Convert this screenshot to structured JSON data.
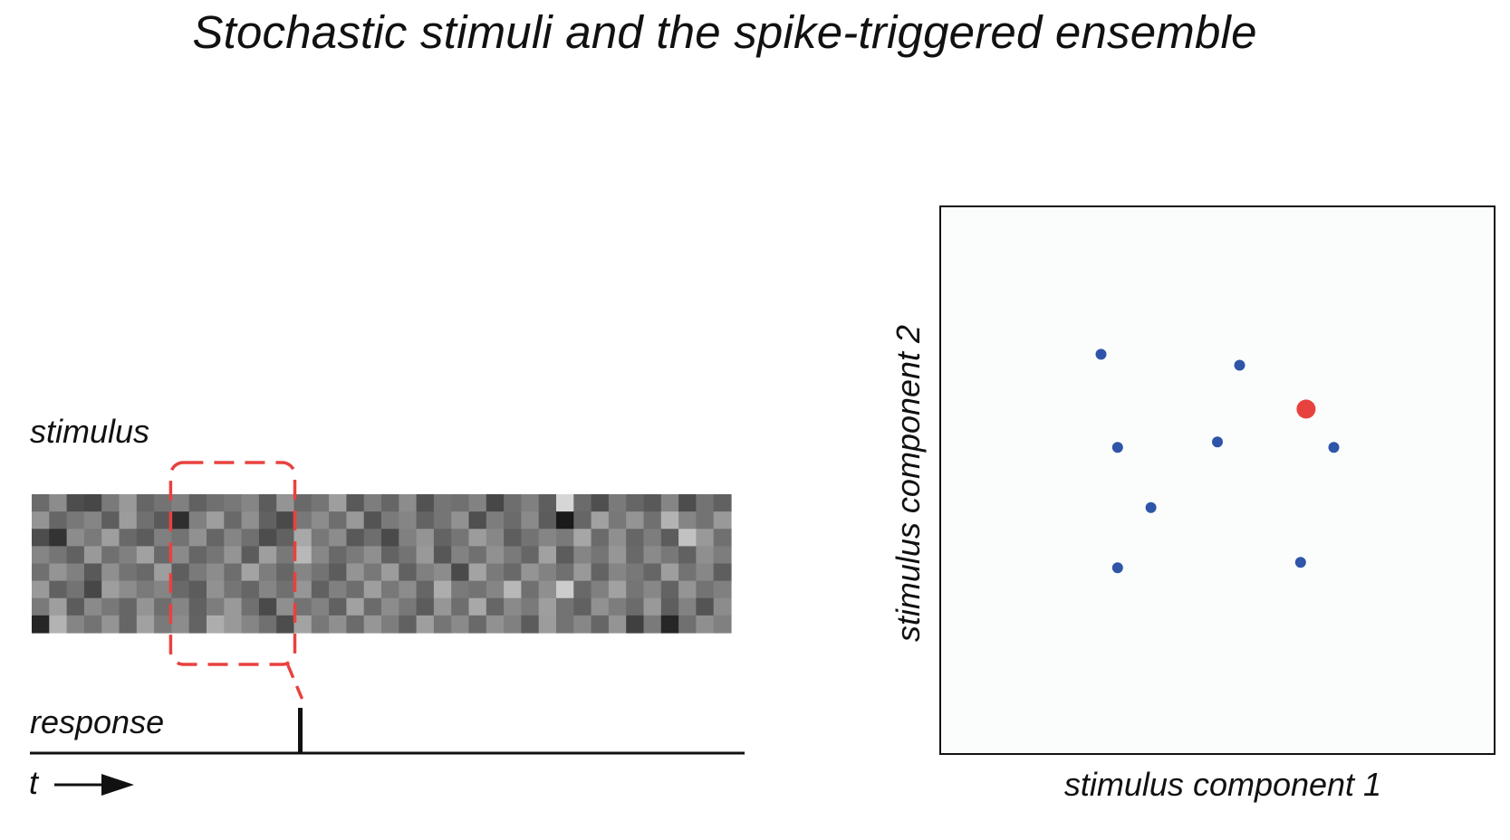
{
  "title": "Stochastic stimuli and the spike-triggered ensemble",
  "left_panel": {
    "stimulus_label": "stimulus",
    "response_label": "response",
    "time_label": "t",
    "stimulus_grid": {
      "rows": 8,
      "cols": 40,
      "values": [
        [
          0.42,
          0.55,
          0.3,
          0.28,
          0.48,
          0.6,
          0.4,
          0.45,
          0.5,
          0.38,
          0.44,
          0.47,
          0.52,
          0.36,
          0.58,
          0.41,
          0.46,
          0.62,
          0.35,
          0.49,
          0.4,
          0.55,
          0.32,
          0.46,
          0.44,
          0.51,
          0.28,
          0.43,
          0.5,
          0.37,
          0.84,
          0.42,
          0.31,
          0.48,
          0.4,
          0.35,
          0.52,
          0.3,
          0.45,
          0.38
        ],
        [
          0.58,
          0.4,
          0.47,
          0.52,
          0.37,
          0.61,
          0.44,
          0.35,
          0.18,
          0.5,
          0.62,
          0.41,
          0.56,
          0.38,
          0.29,
          0.47,
          0.55,
          0.43,
          0.6,
          0.33,
          0.48,
          0.52,
          0.39,
          0.46,
          0.57,
          0.31,
          0.49,
          0.42,
          0.54,
          0.36,
          0.1,
          0.4,
          0.63,
          0.47,
          0.58,
          0.44,
          0.7,
          0.52,
          0.45,
          0.6
        ],
        [
          0.3,
          0.2,
          0.55,
          0.48,
          0.62,
          0.41,
          0.36,
          0.5,
          0.45,
          0.57,
          0.4,
          0.52,
          0.44,
          0.3,
          0.38,
          0.66,
          0.47,
          0.55,
          0.35,
          0.43,
          0.29,
          0.5,
          0.58,
          0.39,
          0.46,
          0.61,
          0.53,
          0.37,
          0.45,
          0.52,
          0.48,
          0.65,
          0.42,
          0.56,
          0.4,
          0.49,
          0.36,
          0.76,
          0.6,
          0.44
        ],
        [
          0.52,
          0.46,
          0.38,
          0.6,
          0.44,
          0.5,
          0.63,
          0.41,
          0.54,
          0.4,
          0.46,
          0.58,
          0.36,
          0.62,
          0.47,
          0.72,
          0.53,
          0.41,
          0.48,
          0.56,
          0.39,
          0.45,
          0.6,
          0.34,
          0.51,
          0.44,
          0.57,
          0.48,
          0.4,
          0.63,
          0.36,
          0.52,
          0.46,
          0.59,
          0.41,
          0.54,
          0.47,
          0.38,
          0.56,
          0.49
        ],
        [
          0.44,
          0.58,
          0.5,
          0.35,
          0.56,
          0.45,
          0.41,
          0.62,
          0.37,
          0.48,
          0.55,
          0.43,
          0.64,
          0.49,
          0.4,
          0.52,
          0.45,
          0.36,
          0.58,
          0.47,
          0.61,
          0.38,
          0.5,
          0.55,
          0.29,
          0.64,
          0.48,
          0.41,
          0.58,
          0.51,
          0.44,
          0.6,
          0.39,
          0.52,
          0.47,
          0.4,
          0.62,
          0.45,
          0.53,
          0.37
        ],
        [
          0.6,
          0.38,
          0.45,
          0.28,
          0.62,
          0.55,
          0.48,
          0.52,
          0.41,
          0.36,
          0.57,
          0.46,
          0.4,
          0.52,
          0.44,
          0.59,
          0.38,
          0.5,
          0.43,
          0.62,
          0.47,
          0.55,
          0.4,
          0.68,
          0.48,
          0.45,
          0.52,
          0.72,
          0.44,
          0.56,
          0.8,
          0.41,
          0.5,
          0.63,
          0.46,
          0.53,
          0.39,
          0.58,
          0.45,
          0.5
        ],
        [
          0.48,
          0.62,
          0.36,
          0.54,
          0.47,
          0.4,
          0.58,
          0.43,
          0.52,
          0.38,
          0.49,
          0.6,
          0.44,
          0.29,
          0.56,
          0.45,
          0.51,
          0.38,
          0.63,
          0.42,
          0.55,
          0.47,
          0.36,
          0.59,
          0.43,
          0.66,
          0.4,
          0.54,
          0.48,
          0.62,
          0.45,
          0.38,
          0.57,
          0.49,
          0.42,
          0.6,
          0.37,
          0.51,
          0.33,
          0.55
        ],
        [
          0.15,
          0.7,
          0.52,
          0.45,
          0.58,
          0.4,
          0.63,
          0.48,
          0.55,
          0.39,
          0.68,
          0.6,
          0.52,
          0.44,
          0.3,
          0.64,
          0.47,
          0.56,
          0.42,
          0.59,
          0.49,
          0.38,
          0.62,
          0.46,
          0.54,
          0.41,
          0.57,
          0.5,
          0.36,
          0.61,
          0.45,
          0.53,
          0.4,
          0.58,
          0.25,
          0.48,
          0.15,
          0.44,
          0.56,
          0.5
        ]
      ]
    },
    "highlight_window": {
      "col_start": 8,
      "col_end": 14
    },
    "spike_time_col": 15,
    "highlight_color": "#e8423f"
  },
  "right_panel": {
    "xlabel": "stimulus component 1",
    "ylabel": "stimulus component 2",
    "points": [
      {
        "x": 0.29,
        "y": 0.73,
        "kind": "raw"
      },
      {
        "x": 0.54,
        "y": 0.71,
        "kind": "raw"
      },
      {
        "x": 0.32,
        "y": 0.56,
        "kind": "raw"
      },
      {
        "x": 0.5,
        "y": 0.57,
        "kind": "raw"
      },
      {
        "x": 0.71,
        "y": 0.56,
        "kind": "raw"
      },
      {
        "x": 0.38,
        "y": 0.45,
        "kind": "raw"
      },
      {
        "x": 0.32,
        "y": 0.34,
        "kind": "raw"
      },
      {
        "x": 0.65,
        "y": 0.35,
        "kind": "raw"
      },
      {
        "x": 0.66,
        "y": 0.63,
        "kind": "spike-triggered"
      }
    ],
    "colors": {
      "raw": "#2f55a8",
      "spike-triggered": "#e8423f",
      "plot_background": "#fbfdfd",
      "frame": "#111111"
    }
  }
}
